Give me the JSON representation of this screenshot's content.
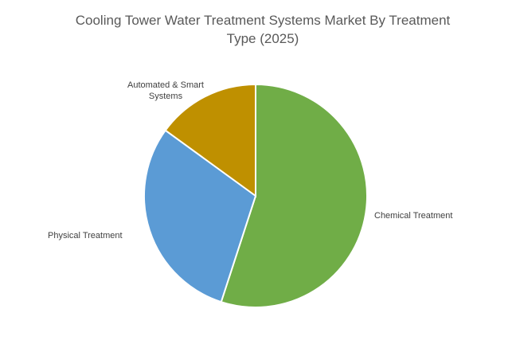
{
  "chart_data": {
    "type": "pie",
    "title": "Cooling Tower Water Treatment Systems Market By Treatment Type (2025)",
    "categories": [
      "Chemical Treatment",
      "Physical Treatment",
      "Automated & Smart Systems"
    ],
    "values": [
      55,
      30,
      15
    ],
    "colors": [
      "#70ad47",
      "#5b9bd5",
      "#bf9000"
    ]
  }
}
